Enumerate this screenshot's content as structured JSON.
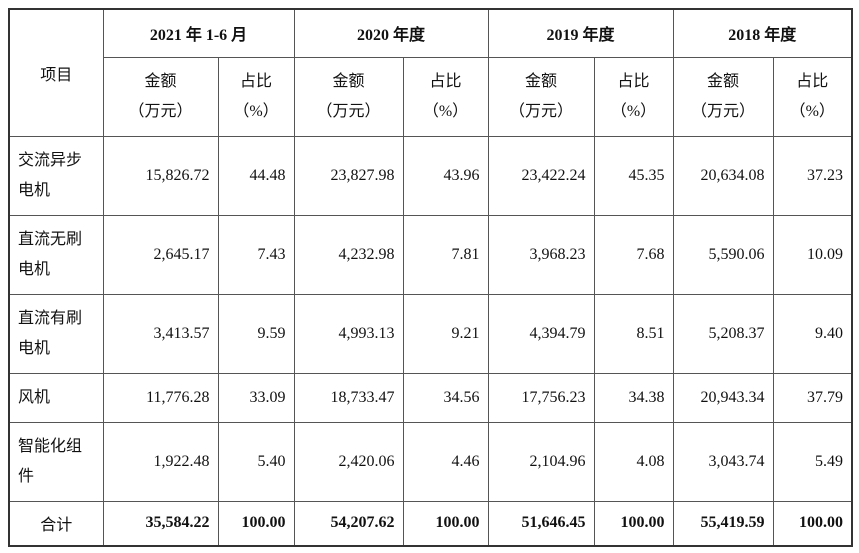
{
  "header": {
    "item": "项目",
    "periods": [
      "2021 年 1-6 月",
      "2020 年度",
      "2019 年度",
      "2018 年度"
    ],
    "amount": [
      "金额",
      "（万元）"
    ],
    "share": [
      "占比",
      "（%）"
    ]
  },
  "table": {
    "rows": [
      {
        "label": "交流异步电机",
        "cells": [
          "15,826.72",
          "44.48",
          "23,827.98",
          "43.96",
          "23,422.24",
          "45.35",
          "20,634.08",
          "37.23"
        ]
      },
      {
        "label": "直流无刷电机",
        "cells": [
          "2,645.17",
          "7.43",
          "4,232.98",
          "7.81",
          "3,968.23",
          "7.68",
          "5,590.06",
          "10.09"
        ]
      },
      {
        "label": "直流有刷电机",
        "cells": [
          "3,413.57",
          "9.59",
          "4,993.13",
          "9.21",
          "4,394.79",
          "8.51",
          "5,208.37",
          "9.40"
        ]
      },
      {
        "label": "风机",
        "cells": [
          "11,776.28",
          "33.09",
          "18,733.47",
          "34.56",
          "17,756.23",
          "34.38",
          "20,943.34",
          "37.79"
        ]
      },
      {
        "label": "智能化组件",
        "cells": [
          "1,922.48",
          "5.40",
          "2,420.06",
          "4.46",
          "2,104.96",
          "4.08",
          "3,043.74",
          "5.49"
        ]
      }
    ],
    "total": {
      "label": "合计",
      "cells": [
        "35,584.22",
        "100.00",
        "54,207.62",
        "100.00",
        "51,646.45",
        "100.00",
        "55,419.59",
        "100.00"
      ]
    }
  }
}
